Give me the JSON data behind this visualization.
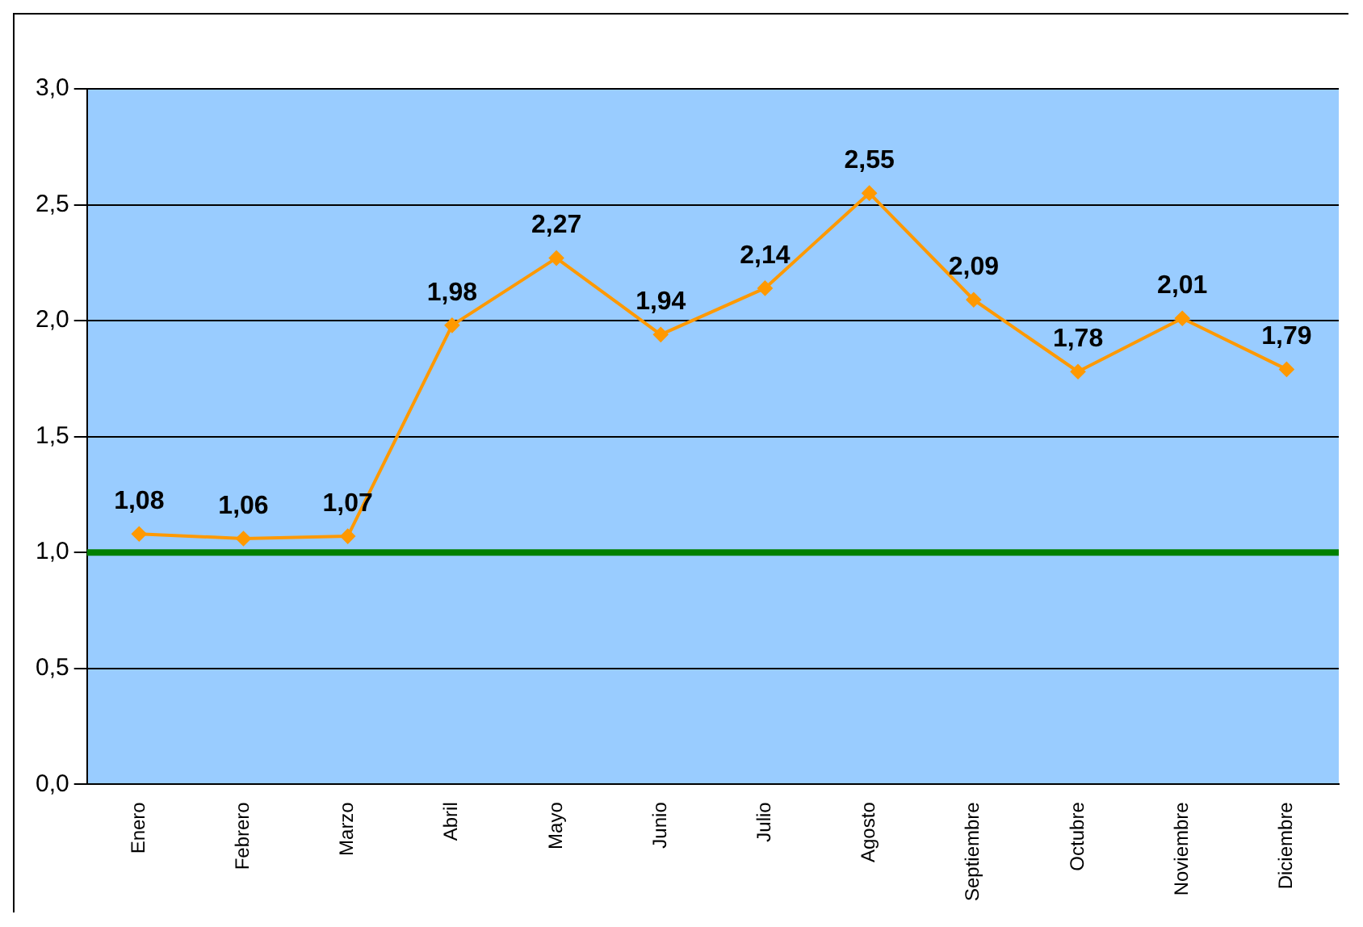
{
  "chart_data": {
    "type": "line",
    "categories": [
      "Enero",
      "Febrero",
      "Marzo",
      "Abril",
      "Mayo",
      "Junio",
      "Julio",
      "Agosto",
      "Septiembre",
      "Octubre",
      "Noviembre",
      "Diciembre"
    ],
    "series": [
      {
        "color": "#ff9900",
        "values": [
          1.08,
          1.06,
          1.07,
          1.98,
          2.27,
          1.94,
          2.14,
          2.55,
          2.09,
          1.78,
          2.01,
          1.79
        ],
        "value_labels": [
          "1,08",
          "1,06",
          "1,07",
          "1,98",
          "2,27",
          "1,94",
          "2,14",
          "2,55",
          "2,09",
          "1,78",
          "2,01",
          "1,79"
        ]
      }
    ],
    "ylim": [
      0,
      3
    ],
    "yticks": [
      {
        "value": 0,
        "label": "0,0"
      },
      {
        "value": 0.5,
        "label": "0,5"
      },
      {
        "value": 1,
        "label": "1,0"
      },
      {
        "value": 1.5,
        "label": "1,5"
      },
      {
        "value": 2,
        "label": "2,0"
      },
      {
        "value": 2.5,
        "label": "2,5"
      },
      {
        "value": 3,
        "label": "3,0"
      }
    ],
    "grid": "y",
    "legend": false,
    "marker": "diamond",
    "line_style": "solid",
    "ref_lines": [
      {
        "axis": "y",
        "value": 1,
        "color": "#008000"
      }
    ]
  }
}
